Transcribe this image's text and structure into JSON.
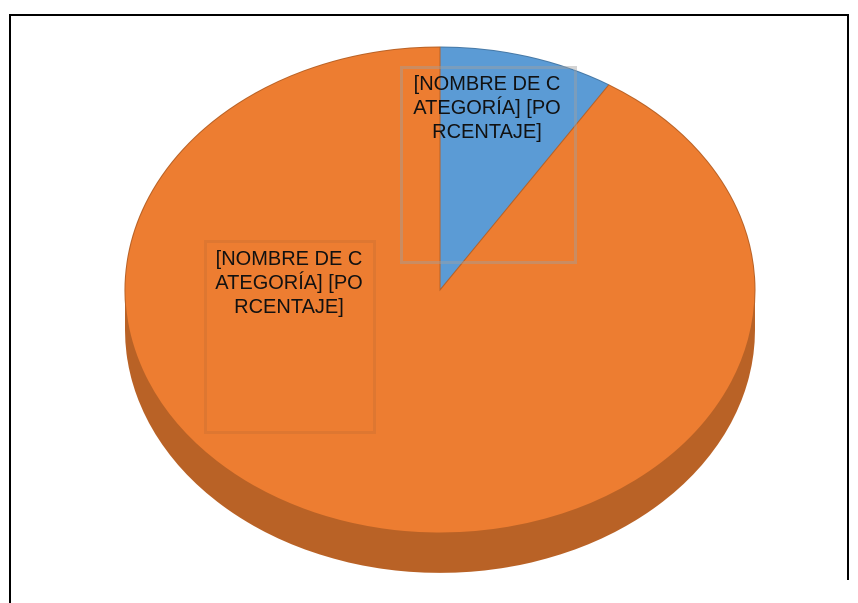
{
  "chart_data": {
    "type": "pie",
    "categories": [
      "[NOMBRE DE CATEGORÍA]",
      "[NOMBRE DE CATEGORÍA]"
    ],
    "values": [
      9,
      91
    ],
    "value_labels": [
      "[PORCENTAJE]",
      "[PORCENTAJE]"
    ],
    "colors": [
      "#5b9bd5",
      "#ed7d31"
    ]
  }
}
